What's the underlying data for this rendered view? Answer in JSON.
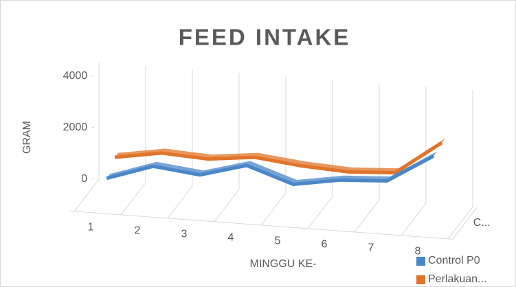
{
  "chart_data": {
    "type": "line3d",
    "title": "FEED INTAKE",
    "y_label": "GRAM",
    "x_label": "MINGGU KE-",
    "categories": [
      "1",
      "2",
      "3",
      "4",
      "5",
      "6",
      "7",
      "8"
    ],
    "z_categories": [
      "C..."
    ],
    "series": [
      {
        "name": "Control P0",
        "color": "#4a86c8",
        "values": [
          900,
          1500,
          1300,
          1800,
          1200,
          1500,
          1600,
          2700
        ]
      },
      {
        "name": "Perlakuan...",
        "color": "#e0742a",
        "values": [
          1300,
          1600,
          1500,
          1700,
          1500,
          1400,
          1500,
          2800
        ]
      }
    ],
    "ylim": [
      0,
      4000
    ],
    "yticks": [
      0,
      2000,
      4000
    ]
  }
}
